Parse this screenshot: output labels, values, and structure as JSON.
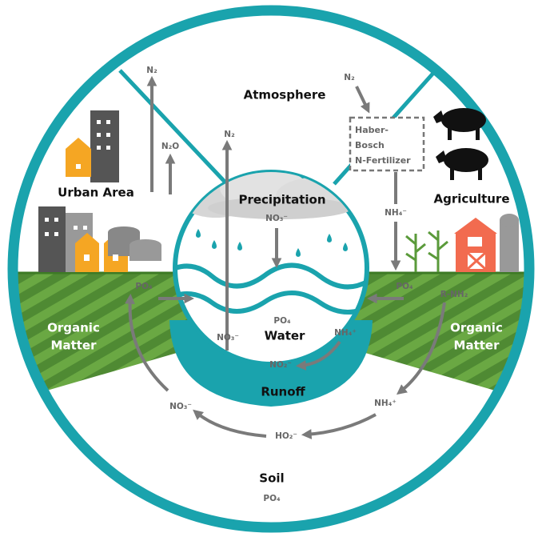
{
  "regions": {
    "atmosphere": "Atmosphere",
    "urban_area": "Urban Area",
    "agriculture": "Agriculture",
    "precipitation": "Precipitation",
    "water": "Water",
    "runoff": "Runoff",
    "soil": "Soil",
    "organic_matter_left": [
      "Organic",
      "Matter"
    ],
    "organic_matter_right": [
      "Organic",
      "Matter"
    ]
  },
  "haber_bosch": [
    "Haber-",
    "Bosch",
    "N-Fertilizer"
  ],
  "labels": [
    "N₂",
    "N₂O",
    "N₂",
    "N₂",
    "NO₃⁻",
    "NH₄⁻",
    "PO₄",
    "PO₄",
    "R-NH₂",
    "PO₄",
    "NH₄⁺",
    "NO₃⁻",
    "NO₂⁻",
    "NO₃⁻",
    "NH₄⁺",
    "HO₂⁻",
    "PO₄"
  ]
}
